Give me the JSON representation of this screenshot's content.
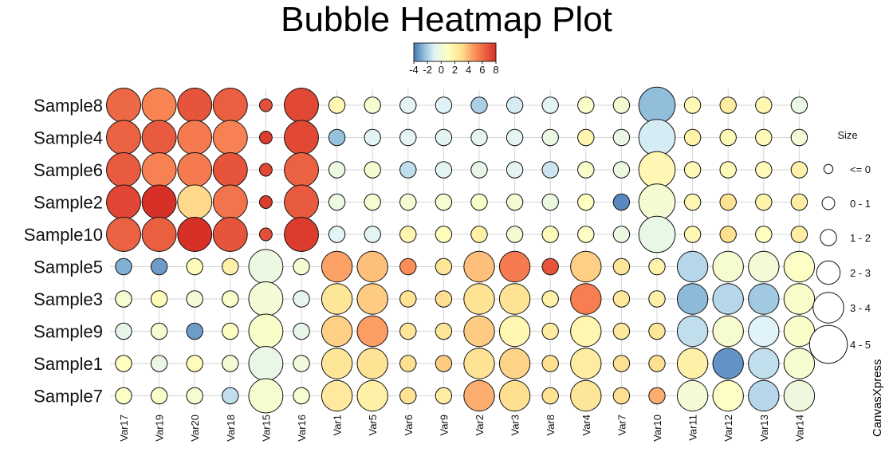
{
  "chart_data": {
    "type": "bubble-heatmap",
    "title": "Bubble Heatmap Plot",
    "samples": [
      "Sample8",
      "Sample4",
      "Sample6",
      "Sample2",
      "Sample10",
      "Sample5",
      "Sample3",
      "Sample9",
      "Sample1",
      "Sample7"
    ],
    "variables": [
      "Var17",
      "Var19",
      "Var20",
      "Var18",
      "Var15",
      "Var16",
      "Var1",
      "Var5",
      "Var6",
      "Var9",
      "Var2",
      "Var3",
      "Var8",
      "Var4",
      "Var7",
      "Var10",
      "Var11",
      "Var12",
      "Var13",
      "Var14"
    ],
    "color_values": [
      [
        6.2,
        5.3,
        6.8,
        6.5,
        7.0,
        7.2,
        1.5,
        0.4,
        -0.8,
        -1.0,
        -2.0,
        -1.2,
        -0.8,
        0.6,
        0.3,
        -2.5,
        1.4,
        2.2,
        1.6,
        -0.3
      ],
      [
        6.4,
        6.6,
        5.6,
        5.4,
        7.6,
        7.2,
        -2.4,
        -0.9,
        -0.8,
        -0.8,
        -0.6,
        -0.8,
        -0.2,
        1.6,
        -0.3,
        -1.2,
        1.8,
        1.3,
        1.3,
        0.2
      ],
      [
        6.6,
        5.4,
        5.6,
        6.8,
        7.2,
        6.4,
        -0.2,
        0.4,
        -1.6,
        -0.8,
        -0.5,
        -0.8,
        -1.4,
        0.6,
        -0.2,
        1.5,
        1.4,
        1.3,
        1.3,
        1.9
      ],
      [
        7.3,
        8.0,
        3.2,
        5.8,
        7.6,
        6.6,
        -0.2,
        0.4,
        0.3,
        0.4,
        0.6,
        0.3,
        -0.2,
        1.0,
        -3.6,
        0.3,
        1.6,
        2.8,
        1.8,
        2.1
      ],
      [
        6.4,
        6.5,
        8.0,
        6.8,
        7.0,
        7.6,
        -0.9,
        -0.8,
        1.6,
        1.2,
        2.0,
        0.3,
        1.2,
        0.8,
        -0.2,
        -0.4,
        1.6,
        3.0,
        1.0,
        2.1
      ],
      [
        -2.8,
        -3.2,
        1.3,
        2.0,
        -0.2,
        0.3,
        4.5,
        3.8,
        5.0,
        2.6,
        3.8,
        5.6,
        6.8,
        3.4,
        2.6,
        1.8,
        -1.8,
        0.4,
        0.2,
        0.8
      ],
      [
        0.4,
        1.2,
        0.2,
        0.6,
        0.2,
        -0.6,
        2.6,
        3.5,
        2.8,
        3.0,
        2.8,
        2.8,
        2.0,
        5.5,
        2.5,
        2.0,
        -2.6,
        -1.8,
        -2.2,
        0.6
      ],
      [
        -0.5,
        0.4,
        -3.2,
        0.9,
        0.6,
        -0.5,
        3.4,
        4.6,
        2.6,
        2.6,
        3.5,
        1.6,
        2.2,
        1.6,
        2.5,
        2.6,
        -1.6,
        0.4,
        -1.0,
        0.6
      ],
      [
        1.0,
        -0.3,
        1.2,
        0.2,
        -0.4,
        0.0,
        2.6,
        2.8,
        3.0,
        3.5,
        2.8,
        3.3,
        3.0,
        2.2,
        2.9,
        3.0,
        2.0,
        -3.4,
        -1.6,
        0.4
      ],
      [
        0.8,
        0.6,
        0.4,
        -1.6,
        0.4,
        0.4,
        2.4,
        2.0,
        2.8,
        2.2,
        4.2,
        3.0,
        2.8,
        2.6,
        3.0,
        4.2,
        0.2,
        0.8,
        -1.8,
        -0.1
      ]
    ],
    "size_values": [
      [
        4.1,
        4.1,
        4.1,
        4.1,
        1.1,
        4.1,
        1.6,
        1.6,
        1.6,
        1.6,
        1.6,
        1.6,
        1.6,
        1.6,
        1.6,
        4.4,
        1.6,
        1.6,
        1.6,
        1.6
      ],
      [
        4.1,
        4.1,
        4.1,
        4.1,
        1.1,
        4.1,
        1.6,
        1.6,
        1.6,
        1.6,
        1.6,
        1.6,
        1.6,
        1.6,
        1.6,
        4.4,
        1.6,
        1.6,
        1.6,
        1.6
      ],
      [
        4.1,
        4.1,
        4.1,
        4.1,
        1.1,
        4.1,
        1.6,
        1.6,
        1.6,
        1.6,
        1.6,
        1.6,
        1.6,
        1.6,
        1.6,
        4.4,
        1.6,
        1.6,
        1.6,
        1.6
      ],
      [
        4.1,
        4.1,
        4.1,
        4.1,
        1.1,
        4.1,
        1.6,
        1.6,
        1.6,
        1.6,
        1.6,
        1.6,
        1.6,
        1.6,
        1.6,
        4.4,
        1.6,
        1.6,
        1.6,
        1.6
      ],
      [
        4.1,
        4.1,
        4.1,
        4.1,
        1.1,
        4.1,
        1.6,
        1.6,
        1.6,
        1.6,
        1.6,
        1.6,
        1.6,
        1.6,
        1.6,
        4.4,
        1.6,
        1.6,
        1.6,
        1.6
      ],
      [
        1.6,
        1.6,
        1.6,
        1.6,
        4.1,
        1.6,
        3.6,
        3.6,
        1.6,
        1.6,
        3.6,
        3.6,
        1.6,
        3.6,
        1.6,
        1.6,
        3.6,
        3.6,
        3.6,
        3.6
      ],
      [
        1.6,
        1.6,
        1.6,
        1.6,
        4.1,
        1.6,
        3.6,
        3.6,
        1.6,
        1.6,
        3.6,
        3.6,
        1.6,
        3.6,
        1.6,
        1.6,
        3.6,
        3.6,
        3.6,
        3.6
      ],
      [
        1.6,
        1.6,
        1.6,
        1.6,
        4.1,
        1.6,
        3.6,
        3.6,
        1.6,
        1.6,
        3.6,
        3.6,
        1.6,
        3.6,
        1.6,
        1.6,
        3.6,
        3.6,
        3.6,
        3.6
      ],
      [
        1.6,
        1.6,
        1.6,
        1.6,
        4.1,
        1.6,
        3.6,
        3.6,
        1.6,
        1.6,
        3.6,
        3.6,
        1.6,
        3.6,
        1.6,
        1.6,
        3.6,
        3.6,
        3.6,
        3.6
      ],
      [
        1.6,
        1.6,
        1.6,
        1.6,
        4.1,
        1.6,
        3.6,
        3.6,
        1.6,
        1.6,
        3.6,
        3.6,
        1.6,
        3.6,
        1.6,
        1.6,
        3.6,
        3.6,
        3.6,
        3.6
      ]
    ],
    "color_scale": {
      "ticks": [
        -4,
        -2,
        0,
        2,
        4,
        6,
        8
      ],
      "range": [
        -4,
        8
      ],
      "stops": [
        {
          "value": -4,
          "color": "#4575b4"
        },
        {
          "value": -2.5,
          "color": "#91bfdb"
        },
        {
          "value": -1,
          "color": "#e0f3f8"
        },
        {
          "value": 1,
          "color": "#ffffbf"
        },
        {
          "value": 3,
          "color": "#fee090"
        },
        {
          "value": 5,
          "color": "#fc8d59"
        },
        {
          "value": 8,
          "color": "#d73027"
        }
      ]
    },
    "size_legend": {
      "title": "Size",
      "items": [
        {
          "label": "<= 0",
          "value": 0.6
        },
        {
          "label": "0 - 1",
          "value": 1.1
        },
        {
          "label": "1 - 2",
          "value": 1.6
        },
        {
          "label": "2 - 3",
          "value": 2.6
        },
        {
          "label": "3 - 4",
          "value": 3.6
        },
        {
          "label": "4 - 5",
          "value": 4.6
        }
      ]
    },
    "grid": true
  },
  "branding": "CanvasXpress"
}
